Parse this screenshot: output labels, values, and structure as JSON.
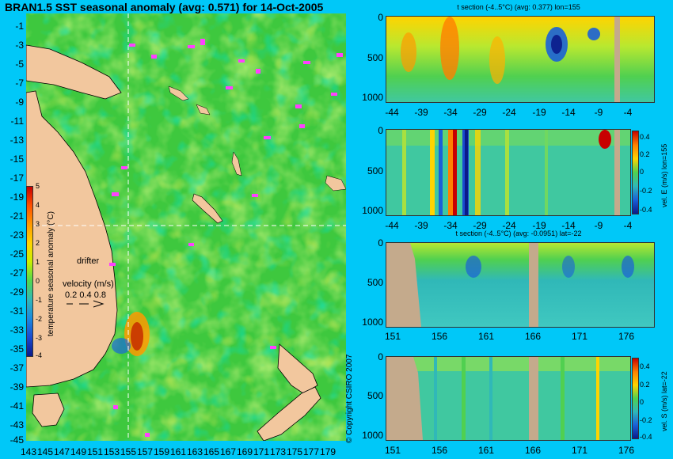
{
  "title": "BRAN1.5 SST seasonal anomaly (avg: 0.571) for 14-Oct-2005",
  "map": {
    "lat_labels": [
      "-1",
      "-3",
      "-5",
      "-7",
      "-9",
      "-11",
      "-13",
      "-15",
      "-17",
      "-19",
      "-21",
      "-23",
      "-25",
      "-27",
      "-29",
      "-31",
      "-33",
      "-35",
      "-37",
      "-39",
      "-41",
      "-43",
      "-45"
    ],
    "lon_labels": [
      "143",
      "145",
      "147",
      "149",
      "151",
      "153",
      "155",
      "157",
      "159",
      "161",
      "163",
      "165",
      "167",
      "169",
      "171",
      "173",
      "175",
      "177",
      "179"
    ],
    "colorbar_title": "temperature seasonal anomaly (°C)",
    "colorbar_ticks": [
      "5",
      "4",
      "3",
      "2",
      "1",
      "0",
      "-1",
      "-2",
      "-3",
      "-4"
    ],
    "drifter_label": "drifter",
    "velocity_label": "velocity (m/s)",
    "velocity_values": "0.2 0.4 0.8"
  },
  "panels": {
    "p1": {
      "title": "t section (-4..5°C) (avg: 0.377) lon=155",
      "x_labels": [
        "-44",
        "-39",
        "-34",
        "-29",
        "-24",
        "-19",
        "-14",
        "-9",
        "-4"
      ],
      "y_labels": [
        "0",
        "500",
        "1000"
      ]
    },
    "p2": {
      "x_labels": [
        "-44",
        "-39",
        "-34",
        "-29",
        "-24",
        "-19",
        "-14",
        "-9",
        "-4"
      ],
      "y_labels": [
        "0",
        "500",
        "1000"
      ],
      "side_label": "vel. E (m/s) lon=155",
      "cbar_ticks": [
        "0.4",
        "0.2",
        "0",
        "-0.2",
        "-0.4"
      ]
    },
    "p3": {
      "title": "t section (-4..5°C) (avg: -0.0951) lat=-22",
      "x_labels": [
        "151",
        "156",
        "161",
        "166",
        "171",
        "176"
      ],
      "y_labels": [
        "0",
        "500",
        "1000"
      ]
    },
    "p4": {
      "x_labels": [
        "151",
        "156",
        "161",
        "166",
        "171",
        "176"
      ],
      "y_labels": [
        "0",
        "500",
        "1000"
      ],
      "side_label": "vel. S (m/s) lat=-22",
      "cbar_ticks": [
        "0.4",
        "0.2",
        "0",
        "-0.2",
        "-0.4"
      ]
    }
  },
  "copyright": "© Copyright CSIRO 2007",
  "colors": {
    "background": "#00c8f8",
    "land": "#f2c79e",
    "section_land": "#c4aa8c",
    "ocean_base": "#3ec83e",
    "drifter": "#ff40ff"
  }
}
